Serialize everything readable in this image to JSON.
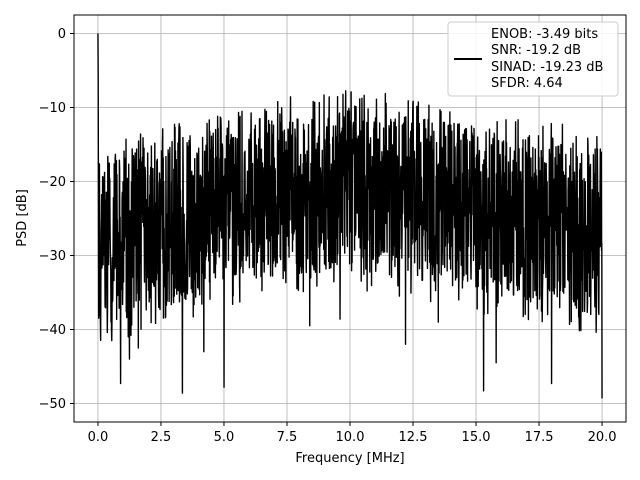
{
  "chart_data": {
    "type": "line",
    "title": "",
    "xlabel": "Frequency [MHz]",
    "ylabel": "PSD [dB]",
    "xlim": [
      -0.95,
      20.95
    ],
    "ylim": [
      -52.5,
      2.5
    ],
    "x_ticks": [
      0.0,
      2.5,
      5.0,
      7.5,
      10.0,
      12.5,
      15.0,
      17.5,
      20.0
    ],
    "x_tick_labels": [
      "0.0",
      "2.5",
      "5.0",
      "7.5",
      "10.0",
      "12.5",
      "15.0",
      "17.5",
      "20.0"
    ],
    "y_ticks": [
      0,
      -10,
      -20,
      -30,
      -40,
      -50
    ],
    "y_tick_labels": [
      "0",
      "−10",
      "−20",
      "−30",
      "−40",
      "−50"
    ],
    "grid": true,
    "legend_position": "top-right",
    "legend_entries": [
      "ENOB: -3.49 bits",
      "SNR: -19.2 dB",
      "SINAD: -19.23 dB",
      "SFDR: 4.64"
    ],
    "series": [
      {
        "color": "#000000",
        "x_range": [
          0.0,
          20.0
        ],
        "n_points": 2048,
        "peak": {
          "x": 0.0,
          "y": 0.0
        },
        "envelope_upper": [
          {
            "x": 0.0,
            "y": -16
          },
          {
            "x": 2.5,
            "y": -14
          },
          {
            "x": 5.0,
            "y": -12
          },
          {
            "x": 7.5,
            "y": -10
          },
          {
            "x": 10.0,
            "y": -9
          },
          {
            "x": 12.5,
            "y": -10
          },
          {
            "x": 15.0,
            "y": -12
          },
          {
            "x": 17.5,
            "y": -13
          },
          {
            "x": 20.0,
            "y": -15
          }
        ],
        "envelope_lower": [
          {
            "x": 0.0,
            "y": -40
          },
          {
            "x": 2.5,
            "y": -38
          },
          {
            "x": 5.0,
            "y": -35
          },
          {
            "x": 7.5,
            "y": -33
          },
          {
            "x": 10.0,
            "y": -33
          },
          {
            "x": 12.5,
            "y": -34
          },
          {
            "x": 15.0,
            "y": -36
          },
          {
            "x": 17.5,
            "y": -37
          },
          {
            "x": 20.0,
            "y": -39
          }
        ],
        "deep_minima": [
          {
            "x": 0.55,
            "y": -41.5
          },
          {
            "x": 0.9,
            "y": -47.3
          },
          {
            "x": 1.25,
            "y": -44
          },
          {
            "x": 1.6,
            "y": -42.5
          },
          {
            "x": 3.35,
            "y": -48.6
          },
          {
            "x": 4.2,
            "y": -43
          },
          {
            "x": 5.0,
            "y": -47.8
          },
          {
            "x": 8.4,
            "y": -39.5
          },
          {
            "x": 9.6,
            "y": -38.6
          },
          {
            "x": 12.2,
            "y": -42
          },
          {
            "x": 13.5,
            "y": -39
          },
          {
            "x": 15.3,
            "y": -48.3
          },
          {
            "x": 15.8,
            "y": -44.5
          },
          {
            "x": 18.0,
            "y": -47.3
          },
          {
            "x": 20.0,
            "y": -49.3
          }
        ]
      }
    ]
  }
}
